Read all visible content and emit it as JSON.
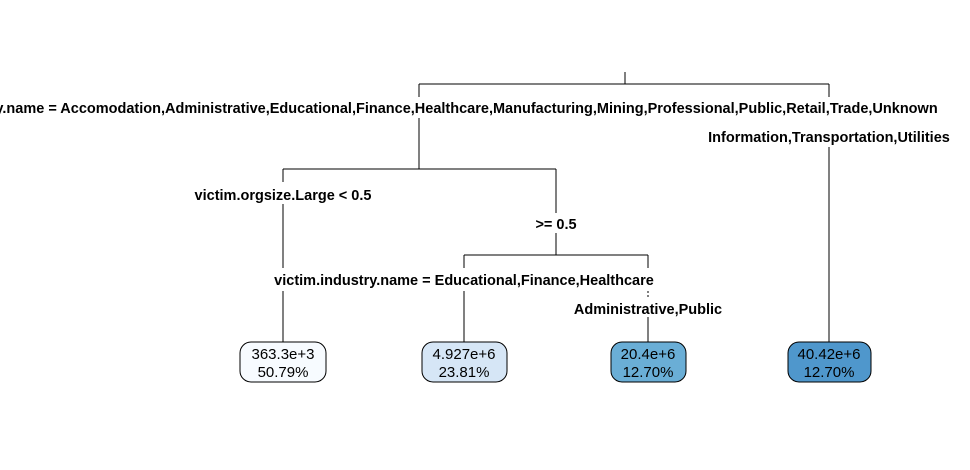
{
  "tree": {
    "root_split": {
      "left_label": "victim.industry.name = Accomodation,Administrative,Educational,Finance,Healthcare,Manufacturing,Mining,Professional,Public,Retail,Trade,Unknown",
      "right_label": "Information,Transportation,Utilities"
    },
    "orgsize_split": {
      "left_label": "victim.orgsize.Large < 0.5",
      "right_label": ">= 0.5"
    },
    "industry_split": {
      "left_label": "victim.industry.name = Educational,Finance,Healthcare",
      "right_label": "Administrative,Public"
    },
    "leaves": [
      {
        "value": "363.3e+3",
        "percent": "50.79%",
        "fill": "#f7fbff"
      },
      {
        "value": "4.927e+6",
        "percent": "23.81%",
        "fill": "#d6e6f6"
      },
      {
        "value": "20.4e+6",
        "percent": "12.70%",
        "fill": "#6aaed6"
      },
      {
        "value": "40.42e+6",
        "percent": "12.70%",
        "fill": "#4f97cc"
      }
    ]
  }
}
